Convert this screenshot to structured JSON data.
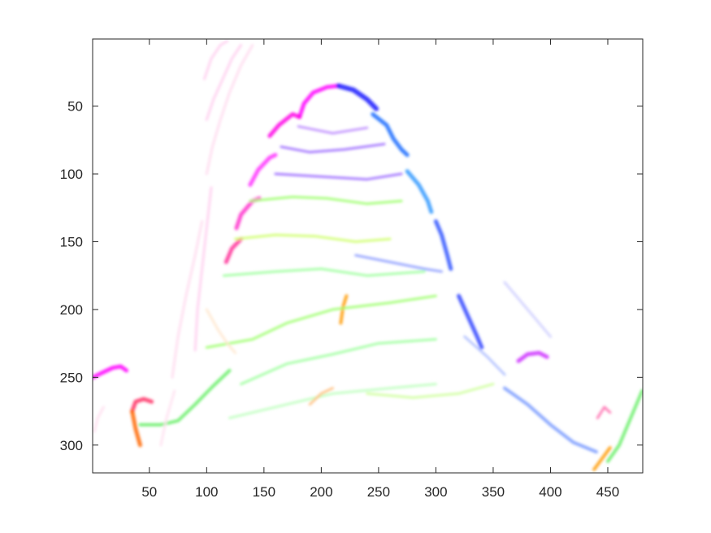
{
  "chart_data": {
    "type": "heatmap",
    "title": "",
    "xlabel": "",
    "ylabel": "",
    "xlim": [
      0.5,
      480.5
    ],
    "ylim": [
      0.5,
      320.5
    ],
    "y_reversed": true,
    "grid": false,
    "x_ticks": [
      50,
      100,
      150,
      200,
      250,
      300,
      350,
      400,
      450
    ],
    "y_ticks": [
      50,
      100,
      150,
      200,
      250,
      300
    ],
    "x_tick_labels": [
      "50",
      "100",
      "150",
      "200",
      "250",
      "300",
      "350",
      "400",
      "450"
    ],
    "y_tick_labels": [
      "50",
      "100",
      "150",
      "200",
      "250",
      "300"
    ],
    "strokes": [
      {
        "color": "#ff00ff",
        "width": 5,
        "points": [
          [
            181,
            58
          ],
          [
            185,
            48
          ],
          [
            193,
            40
          ],
          [
            205,
            36
          ],
          [
            215,
            35
          ]
        ]
      },
      {
        "color": "#1a1aff",
        "width": 6,
        "points": [
          [
            215,
            35
          ],
          [
            228,
            38
          ],
          [
            240,
            45
          ],
          [
            248,
            52
          ]
        ]
      },
      {
        "color": "#1a6bff",
        "width": 5,
        "points": [
          [
            245,
            56
          ],
          [
            257,
            64
          ],
          [
            263,
            74
          ],
          [
            270,
            82
          ],
          [
            275,
            86
          ]
        ]
      },
      {
        "color": "#ff00e6",
        "width": 5,
        "points": [
          [
            155,
            72
          ],
          [
            163,
            64
          ],
          [
            175,
            56
          ],
          [
            181,
            58
          ]
        ]
      },
      {
        "color": "#ff33ff",
        "width": 5,
        "points": [
          [
            138,
            108
          ],
          [
            145,
            97
          ],
          [
            155,
            88
          ],
          [
            160,
            86
          ]
        ]
      },
      {
        "color": "#3399ff",
        "width": 5,
        "points": [
          [
            275,
            98
          ],
          [
            285,
            108
          ],
          [
            293,
            120
          ],
          [
            296,
            128
          ]
        ]
      },
      {
        "color": "#ff33cc",
        "width": 5,
        "points": [
          [
            126,
            140
          ],
          [
            130,
            130
          ],
          [
            140,
            120
          ],
          [
            146,
            118
          ]
        ]
      },
      {
        "color": "#3355ff",
        "width": 5,
        "points": [
          [
            300,
            135
          ],
          [
            305,
            145
          ],
          [
            310,
            160
          ],
          [
            313,
            170
          ]
        ]
      },
      {
        "color": "#ff3399",
        "width": 5,
        "points": [
          [
            117,
            165
          ],
          [
            122,
            155
          ],
          [
            130,
            148
          ]
        ]
      },
      {
        "color": "#3344ff",
        "width": 5,
        "points": [
          [
            320,
            190
          ],
          [
            328,
            205
          ],
          [
            336,
            220
          ],
          [
            340,
            228
          ]
        ]
      },
      {
        "color": "#ff00ff",
        "width": 5,
        "points": [
          [
            1,
            250
          ],
          [
            8,
            247
          ],
          [
            18,
            243
          ],
          [
            25,
            242
          ],
          [
            30,
            245
          ]
        ]
      },
      {
        "color": "#ff3366",
        "width": 5,
        "points": [
          [
            35,
            275
          ],
          [
            38,
            268
          ],
          [
            45,
            266
          ],
          [
            52,
            268
          ]
        ]
      },
      {
        "color": "#ff6600",
        "width": 5,
        "points": [
          [
            35,
            275
          ],
          [
            38,
            288
          ],
          [
            42,
            300
          ]
        ]
      },
      {
        "color": "#cc33ff",
        "width": 5,
        "points": [
          [
            372,
            238
          ],
          [
            380,
            233
          ],
          [
            390,
            232
          ],
          [
            397,
            235
          ]
        ]
      },
      {
        "color": "#66ee66",
        "width": 4,
        "points": [
          [
            42,
            285
          ],
          [
            60,
            285
          ],
          [
            75,
            282
          ],
          [
            90,
            270
          ],
          [
            105,
            257
          ],
          [
            120,
            245
          ]
        ]
      },
      {
        "color": "#66ee66",
        "width": 4,
        "points": [
          [
            450,
            312
          ],
          [
            460,
            300
          ],
          [
            470,
            280
          ],
          [
            480,
            260
          ]
        ]
      },
      {
        "color": "#ff9900",
        "width": 4,
        "points": [
          [
            217,
            210
          ],
          [
            219,
            198
          ],
          [
            222,
            190
          ]
        ]
      },
      {
        "color": "#ff9900",
        "width": 4,
        "points": [
          [
            438,
            318
          ],
          [
            445,
            310
          ],
          [
            452,
            302
          ]
        ]
      },
      {
        "color": "#ff66aa",
        "width": 3,
        "points": [
          [
            441,
            280
          ],
          [
            447,
            272
          ],
          [
            452,
            276
          ]
        ]
      },
      {
        "color": "#7799ff",
        "width": 4,
        "points": [
          [
            360,
            258
          ],
          [
            380,
            270
          ],
          [
            400,
            285
          ],
          [
            420,
            298
          ],
          [
            440,
            305
          ]
        ]
      },
      {
        "color": "#aabbff",
        "width": 3,
        "points": [
          [
            325,
            220
          ],
          [
            345,
            235
          ],
          [
            360,
            248
          ]
        ]
      },
      {
        "color": "#9966ff",
        "width": 3,
        "points": [
          [
            165,
            80
          ],
          [
            190,
            84
          ],
          [
            220,
            82
          ],
          [
            255,
            78
          ]
        ]
      },
      {
        "color": "#bb88ff",
        "width": 3,
        "points": [
          [
            180,
            65
          ],
          [
            210,
            70
          ],
          [
            240,
            66
          ]
        ]
      },
      {
        "color": "#9966ff",
        "width": 3,
        "points": [
          [
            160,
            100
          ],
          [
            200,
            102
          ],
          [
            240,
            104
          ],
          [
            270,
            100
          ]
        ]
      },
      {
        "color": "#99ff66",
        "width": 3,
        "points": [
          [
            138,
            120
          ],
          [
            175,
            117
          ],
          [
            205,
            118
          ],
          [
            240,
            122
          ],
          [
            270,
            120
          ]
        ]
      },
      {
        "color": "#ccff66",
        "width": 3,
        "points": [
          [
            125,
            148
          ],
          [
            160,
            145
          ],
          [
            195,
            146
          ],
          [
            230,
            150
          ],
          [
            260,
            148
          ]
        ]
      },
      {
        "color": "#99ff99",
        "width": 3,
        "points": [
          [
            115,
            175
          ],
          [
            160,
            172
          ],
          [
            200,
            170
          ],
          [
            240,
            175
          ],
          [
            290,
            172
          ]
        ]
      },
      {
        "color": "#8899ff",
        "width": 3,
        "points": [
          [
            230,
            160
          ],
          [
            260,
            165
          ],
          [
            290,
            170
          ],
          [
            305,
            172
          ]
        ]
      },
      {
        "color": "#99ff66",
        "width": 3,
        "points": [
          [
            100,
            228
          ],
          [
            140,
            222
          ],
          [
            170,
            210
          ],
          [
            210,
            200
          ],
          [
            260,
            195
          ],
          [
            300,
            190
          ]
        ]
      },
      {
        "color": "#99ff99",
        "width": 3,
        "points": [
          [
            130,
            255
          ],
          [
            170,
            240
          ],
          [
            210,
            233
          ],
          [
            250,
            225
          ],
          [
            300,
            222
          ]
        ]
      },
      {
        "color": "#bbffbb",
        "width": 3,
        "points": [
          [
            120,
            280
          ],
          [
            170,
            270
          ],
          [
            210,
            262
          ],
          [
            260,
            258
          ],
          [
            300,
            255
          ]
        ]
      },
      {
        "color": "#ccff99",
        "width": 3,
        "points": [
          [
            240,
            262
          ],
          [
            280,
            265
          ],
          [
            320,
            262
          ],
          [
            350,
            255
          ]
        ]
      },
      {
        "color": "#ffbb77",
        "width": 3,
        "points": [
          [
            190,
            270
          ],
          [
            200,
            262
          ],
          [
            210,
            258
          ]
        ]
      },
      {
        "color": "#ffccee",
        "width": 3,
        "points": [
          [
            98,
            30
          ],
          [
            104,
            15
          ],
          [
            112,
            5
          ],
          [
            118,
            2
          ]
        ]
      },
      {
        "color": "#ffccee",
        "width": 3,
        "points": [
          [
            100,
            60
          ],
          [
            106,
            45
          ],
          [
            114,
            30
          ],
          [
            122,
            15
          ],
          [
            130,
            5
          ]
        ]
      },
      {
        "color": "#ffd9ee",
        "width": 3,
        "points": [
          [
            100,
            100
          ],
          [
            105,
            80
          ],
          [
            112,
            60
          ],
          [
            120,
            40
          ],
          [
            130,
            20
          ],
          [
            140,
            5
          ]
        ]
      },
      {
        "color": "#ffccee",
        "width": 3,
        "points": [
          [
            90,
            230
          ],
          [
            92,
            200
          ],
          [
            96,
            170
          ],
          [
            100,
            140
          ],
          [
            104,
            110
          ]
        ]
      },
      {
        "color": "#ffd9ee",
        "width": 3,
        "points": [
          [
            70,
            250
          ],
          [
            75,
            220
          ],
          [
            82,
            190
          ],
          [
            90,
            160
          ],
          [
            96,
            135
          ]
        ]
      },
      {
        "color": "#ffe0f0",
        "width": 3,
        "points": [
          [
            60,
            300
          ],
          [
            65,
            280
          ],
          [
            72,
            260
          ]
        ]
      },
      {
        "color": "#ffe6cc",
        "width": 3,
        "points": [
          [
            100,
            200
          ],
          [
            110,
            215
          ],
          [
            118,
            225
          ],
          [
            125,
            232
          ]
        ]
      },
      {
        "color": "#ffddee",
        "width": 3,
        "points": [
          [
            2,
            290
          ],
          [
            5,
            280
          ],
          [
            10,
            272
          ]
        ]
      },
      {
        "color": "#ccccff",
        "width": 3,
        "points": [
          [
            360,
            180
          ],
          [
            380,
            200
          ],
          [
            400,
            220
          ]
        ]
      }
    ]
  }
}
